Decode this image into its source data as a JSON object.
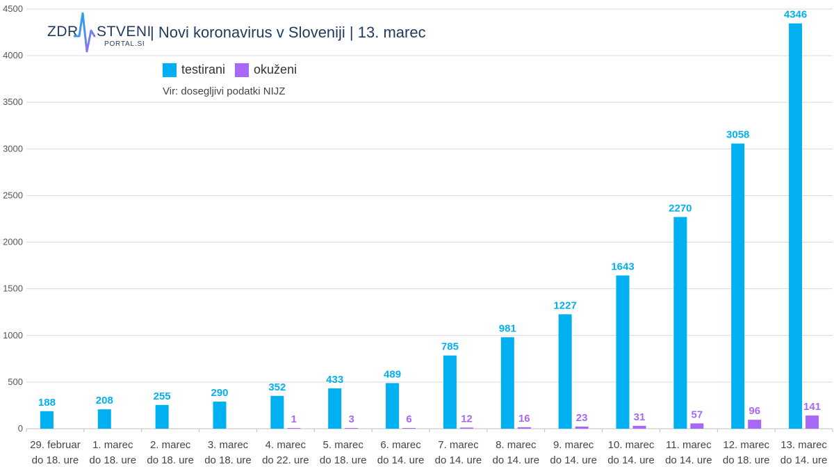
{
  "header": {
    "logo_left": "ZDR",
    "logo_right": "STVENI",
    "logo_sub": "PORTAL.SI",
    "title": "| Novi koronavirus v Sloveniji | 13. marec"
  },
  "legend": [
    {
      "name": "testirani",
      "color": "#00b0f0"
    },
    {
      "name": "okuženi",
      "color": "#a768f5"
    }
  ],
  "source": "Vir: dosegljivi podatki NIJZ",
  "chart_data": {
    "type": "bar",
    "categories": [
      [
        "29. februar",
        "do 18. ure"
      ],
      [
        "1. marec",
        "do 18. ure"
      ],
      [
        "2. marec",
        "do 18. ure"
      ],
      [
        "3. marec",
        "do 18. ure"
      ],
      [
        "4. marec",
        "do 22. ure"
      ],
      [
        "5. marec",
        "do 18. ure"
      ],
      [
        "6. marec",
        "do 14. ure"
      ],
      [
        "7. marec",
        "do 14. ure"
      ],
      [
        "8. marec",
        "do 14. ure"
      ],
      [
        "9. marec",
        "do 14. ure"
      ],
      [
        "10. marec",
        "do 14. ure"
      ],
      [
        "11. marec",
        "do 14. ure"
      ],
      [
        "12. marec",
        "do 18. ure"
      ],
      [
        "13. marec",
        "do 14. ure"
      ]
    ],
    "series": [
      {
        "name": "testirani",
        "color": "#00b0f0",
        "values": [
          188,
          208,
          255,
          290,
          352,
          433,
          489,
          785,
          981,
          1227,
          1643,
          2270,
          3058,
          4346
        ]
      },
      {
        "name": "okuženi",
        "color": "#a768f5",
        "values": [
          null,
          null,
          null,
          null,
          1,
          3,
          6,
          12,
          16,
          23,
          31,
          57,
          96,
          141
        ]
      }
    ],
    "ylim": [
      0,
      4500
    ],
    "yticks": [
      0,
      500,
      1000,
      1500,
      2000,
      2500,
      3000,
      3500,
      4000,
      4500
    ],
    "grid": true,
    "legend_position": "top-left"
  }
}
